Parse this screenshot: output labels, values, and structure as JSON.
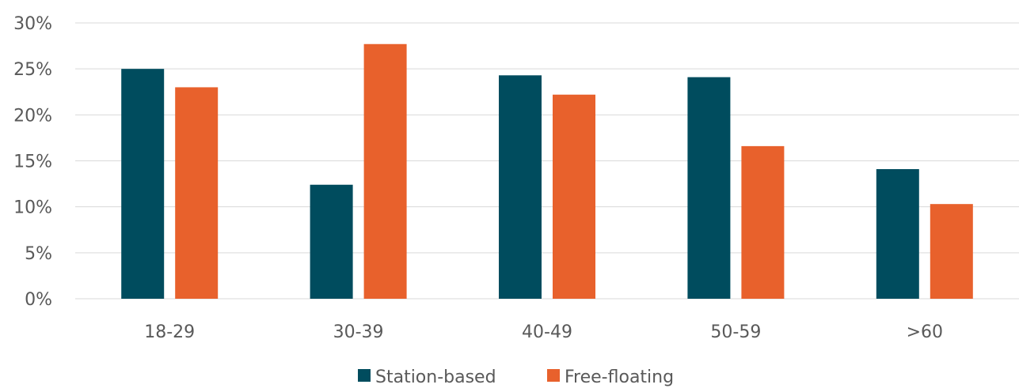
{
  "chart_data": {
    "type": "bar",
    "categories": [
      "18-29",
      "30-39",
      "40-49",
      "50-59",
      ">60"
    ],
    "series": [
      {
        "name": "Station-based",
        "values": [
          25.0,
          12.4,
          24.3,
          24.1,
          14.1
        ],
        "color": "#004c5e"
      },
      {
        "name": "Free-floating",
        "values": [
          23.0,
          27.7,
          22.2,
          16.6,
          10.3
        ],
        "color": "#e8612c"
      }
    ],
    "ylim": [
      0,
      30
    ],
    "yticks": [
      "0%",
      "5%",
      "10%",
      "15%",
      "20%",
      "25%",
      "30%"
    ],
    "grid": true,
    "legend_position": "bottom"
  }
}
